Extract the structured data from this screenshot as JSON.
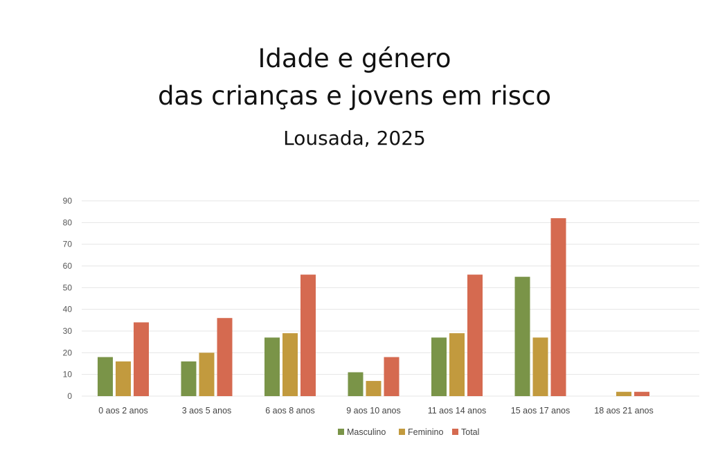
{
  "chart_data": {
    "type": "bar",
    "title_line1": "Idade e género",
    "title_line2": "das crianças e jovens em risco",
    "subtitle": "Lousada, 2025",
    "categories": [
      "0 aos 2 anos",
      "3 aos 5 anos",
      "6 aos 8 anos",
      "9 aos 10 anos",
      "11 aos 14 anos",
      "15 aos 17 anos",
      "18 aos 21 anos"
    ],
    "series": [
      {
        "name": "Masculino",
        "color": "#7a9448",
        "values": [
          18,
          16,
          27,
          11,
          27,
          55,
          0
        ]
      },
      {
        "name": "Feminino",
        "color": "#c29a3e",
        "values": [
          16,
          20,
          29,
          7,
          29,
          27,
          2
        ]
      },
      {
        "name": "Total",
        "color": "#d56a50",
        "values": [
          34,
          36,
          56,
          18,
          56,
          82,
          2
        ]
      }
    ],
    "ylim": [
      0,
      90
    ],
    "yticks": [
      0,
      10,
      20,
      30,
      40,
      50,
      60,
      70,
      80,
      90
    ],
    "grid": true,
    "legend_position": "bottom"
  }
}
